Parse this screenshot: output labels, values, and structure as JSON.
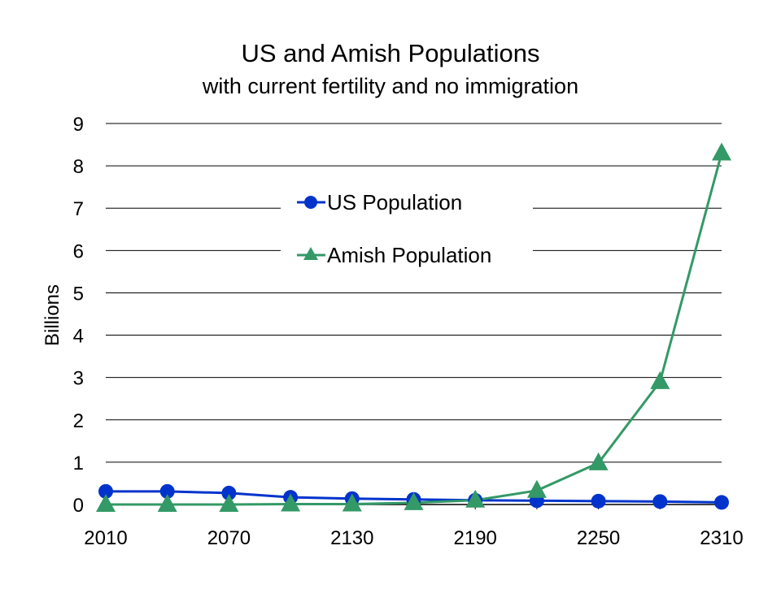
{
  "chart_data": {
    "type": "line",
    "title": "US and Amish Populations",
    "subtitle": "with current fertility and no immigration",
    "xlabel": "",
    "ylabel": "Billions",
    "ylim": [
      0,
      9
    ],
    "yticks": [
      "0",
      "1",
      "2",
      "3",
      "4",
      "5",
      "6",
      "7",
      "8",
      "9"
    ],
    "xtick_labels": [
      "2010",
      "2070",
      "2130",
      "2190",
      "2250",
      "2310"
    ],
    "x": [
      2010,
      2040,
      2070,
      2100,
      2130,
      2160,
      2190,
      2220,
      2250,
      2280,
      2310
    ],
    "grid": true,
    "legend_position": "top-center",
    "series": [
      {
        "name": "US Population",
        "color": "#0033cc",
        "marker": "circle",
        "values": [
          0.31,
          0.31,
          0.27,
          0.17,
          0.14,
          0.12,
          0.1,
          0.09,
          0.08,
          0.07,
          0.05
        ]
      },
      {
        "name": "Amish Population",
        "color": "#339966",
        "marker": "triangle",
        "values": [
          0.0,
          0.0,
          0.0,
          0.01,
          0.01,
          0.04,
          0.1,
          0.33,
          0.98,
          2.9,
          8.3
        ]
      }
    ]
  }
}
